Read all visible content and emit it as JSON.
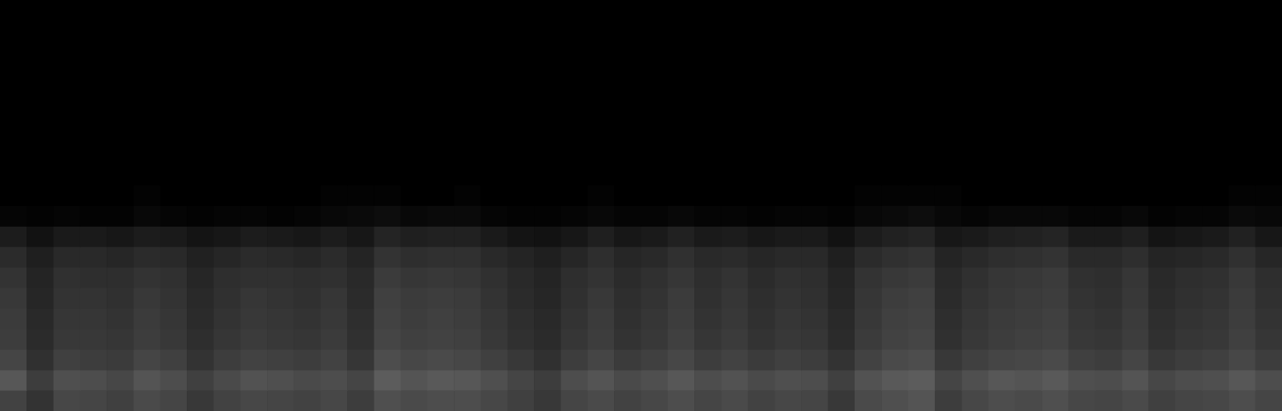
{
  "chart_data": {
    "type": "heatmap",
    "xlim": [
      0,
      48
    ],
    "ylim": [
      0,
      20
    ],
    "tick_labels": false,
    "grid": false,
    "color_range": [
      0,
      100
    ],
    "cells": [
      [
        26,
        20,
        28,
        27,
        25,
        29,
        27,
        22,
        26,
        28,
        27,
        26,
        28,
        24,
        31,
        29,
        30,
        30,
        28,
        25,
        22,
        27,
        29,
        26,
        28,
        30,
        27,
        29,
        26,
        28,
        27,
        22,
        29,
        31,
        33,
        24,
        28,
        30,
        29,
        31,
        28,
        27,
        29,
        25,
        27,
        28,
        30,
        27
      ],
      [
        34,
        24,
        31,
        30,
        28,
        33,
        30,
        25,
        29,
        32,
        31,
        29,
        30,
        27,
        36,
        33,
        35,
        34,
        31,
        27,
        24,
        30,
        33,
        29,
        31,
        34,
        30,
        32,
        29,
        31,
        30,
        25,
        32,
        35,
        36,
        27,
        31,
        34,
        33,
        35,
        31,
        30,
        33,
        28,
        30,
        31,
        34,
        30
      ],
      [
        27,
        19,
        25,
        24,
        23,
        27,
        25,
        20,
        24,
        26,
        25,
        24,
        26,
        21,
        30,
        28,
        29,
        28,
        25,
        22,
        19,
        24,
        27,
        23,
        25,
        28,
        24,
        26,
        23,
        25,
        24,
        20,
        26,
        29,
        30,
        22,
        25,
        27,
        28,
        29,
        25,
        24,
        27,
        22,
        24,
        25,
        28,
        24
      ],
      [
        24,
        17,
        22,
        22,
        21,
        24,
        22,
        18,
        21,
        23,
        22,
        21,
        23,
        19,
        27,
        25,
        26,
        25,
        22,
        19,
        17,
        21,
        24,
        20,
        22,
        25,
        21,
        23,
        20,
        22,
        21,
        17,
        23,
        26,
        27,
        19,
        22,
        24,
        25,
        26,
        22,
        21,
        24,
        19,
        21,
        22,
        25,
        21
      ],
      [
        23,
        16,
        21,
        21,
        20,
        23,
        21,
        17,
        20,
        22,
        21,
        20,
        22,
        18,
        26,
        24,
        25,
        24,
        21,
        18,
        16,
        20,
        23,
        19,
        21,
        24,
        20,
        22,
        19,
        21,
        20,
        16,
        22,
        25,
        26,
        18,
        21,
        23,
        24,
        25,
        21,
        20,
        23,
        18,
        20,
        21,
        24,
        20
      ],
      [
        22,
        15,
        20,
        20,
        19,
        22,
        20,
        16,
        19,
        21,
        20,
        19,
        21,
        17,
        25,
        23,
        24,
        23,
        20,
        17,
        15,
        19,
        22,
        18,
        20,
        23,
        19,
        21,
        18,
        20,
        19,
        15,
        21,
        24,
        25,
        17,
        20,
        22,
        23,
        24,
        20,
        19,
        22,
        17,
        19,
        20,
        23,
        19
      ],
      [
        20,
        14,
        19,
        18,
        18,
        20,
        19,
        15,
        18,
        19,
        19,
        18,
        19,
        16,
        23,
        21,
        22,
        21,
        19,
        16,
        14,
        18,
        20,
        17,
        19,
        21,
        18,
        20,
        17,
        19,
        18,
        14,
        20,
        22,
        23,
        16,
        19,
        21,
        22,
        23,
        19,
        18,
        21,
        16,
        18,
        19,
        22,
        18
      ],
      [
        17,
        12,
        16,
        16,
        15,
        17,
        16,
        13,
        15,
        17,
        16,
        15,
        17,
        14,
        20,
        18,
        19,
        19,
        16,
        14,
        12,
        15,
        18,
        15,
        16,
        19,
        16,
        17,
        15,
        16,
        16,
        12,
        17,
        19,
        20,
        14,
        16,
        18,
        19,
        20,
        16,
        16,
        18,
        14,
        15,
        16,
        19,
        15
      ],
      [
        11,
        7,
        10,
        10,
        9,
        11,
        10,
        8,
        9,
        11,
        10,
        9,
        11,
        9,
        14,
        12,
        13,
        13,
        10,
        8,
        7,
        9,
        12,
        9,
        10,
        13,
        10,
        11,
        9,
        10,
        10,
        7,
        11,
        13,
        14,
        9,
        10,
        12,
        13,
        14,
        10,
        10,
        12,
        8,
        9,
        10,
        13,
        9
      ],
      [
        2,
        1,
        2,
        1,
        1,
        3,
        2,
        1,
        2,
        2,
        1,
        2,
        3,
        4,
        5,
        3,
        4,
        4,
        2,
        1,
        1,
        2,
        3,
        2,
        2,
        3,
        2,
        2,
        1,
        2,
        2,
        1,
        3,
        4,
        5,
        3,
        2,
        3,
        3,
        3,
        2,
        2,
        3,
        1,
        2,
        2,
        4,
        3
      ],
      [
        0,
        0,
        0,
        0,
        0,
        1,
        0,
        0,
        0,
        0,
        0,
        0,
        1,
        1,
        1,
        0,
        0,
        1,
        0,
        0,
        0,
        0,
        1,
        0,
        0,
        0,
        0,
        0,
        0,
        0,
        0,
        0,
        1,
        1,
        1,
        1,
        0,
        0,
        0,
        0,
        0,
        0,
        0,
        0,
        0,
        0,
        1,
        1
      ],
      [
        0,
        0,
        0,
        0,
        0,
        0,
        0,
        0,
        0,
        0,
        0,
        0,
        0,
        0,
        0,
        0,
        0,
        0,
        0,
        0,
        0,
        0,
        0,
        0,
        0,
        0,
        0,
        0,
        0,
        0,
        0,
        0,
        0,
        0,
        0,
        0,
        0,
        0,
        0,
        0,
        0,
        0,
        0,
        0,
        0,
        0,
        0,
        0
      ],
      [
        0,
        0,
        0,
        0,
        0,
        0,
        0,
        0,
        0,
        0,
        0,
        0,
        0,
        0,
        0,
        0,
        0,
        0,
        0,
        0,
        0,
        0,
        0,
        0,
        0,
        0,
        0,
        0,
        0,
        0,
        0,
        0,
        0,
        0,
        0,
        0,
        0,
        0,
        0,
        0,
        0,
        0,
        0,
        0,
        0,
        0,
        0,
        0
      ],
      [
        0,
        0,
        0,
        0,
        0,
        0,
        0,
        0,
        0,
        0,
        0,
        0,
        0,
        0,
        0,
        0,
        0,
        0,
        0,
        0,
        0,
        0,
        0,
        0,
        0,
        0,
        0,
        0,
        0,
        0,
        0,
        0,
        0,
        0,
        0,
        0,
        0,
        0,
        0,
        0,
        0,
        0,
        0,
        0,
        0,
        0,
        0,
        0
      ],
      [
        0,
        0,
        0,
        0,
        0,
        0,
        0,
        0,
        0,
        0,
        0,
        0,
        0,
        0,
        0,
        0,
        0,
        0,
        0,
        0,
        0,
        0,
        0,
        0,
        0,
        0,
        0,
        0,
        0,
        0,
        0,
        0,
        0,
        0,
        0,
        0,
        0,
        0,
        0,
        0,
        0,
        0,
        0,
        0,
        0,
        0,
        0,
        0
      ],
      [
        0,
        0,
        0,
        0,
        0,
        0,
        0,
        0,
        0,
        0,
        0,
        0,
        0,
        0,
        0,
        0,
        0,
        0,
        0,
        0,
        0,
        0,
        0,
        0,
        0,
        0,
        0,
        0,
        0,
        0,
        0,
        0,
        0,
        0,
        0,
        0,
        0,
        0,
        0,
        0,
        0,
        0,
        0,
        0,
        0,
        0,
        0,
        0
      ],
      [
        0,
        0,
        0,
        0,
        0,
        0,
        0,
        0,
        0,
        0,
        0,
        0,
        0,
        0,
        0,
        0,
        0,
        0,
        0,
        0,
        0,
        0,
        0,
        0,
        0,
        0,
        0,
        0,
        0,
        0,
        0,
        0,
        0,
        0,
        0,
        0,
        0,
        0,
        0,
        0,
        0,
        0,
        0,
        0,
        0,
        0,
        0,
        0
      ],
      [
        0,
        0,
        0,
        0,
        0,
        0,
        0,
        0,
        0,
        0,
        0,
        0,
        0,
        0,
        0,
        0,
        0,
        0,
        0,
        0,
        0,
        0,
        0,
        0,
        0,
        0,
        0,
        0,
        0,
        0,
        0,
        0,
        0,
        0,
        0,
        0,
        0,
        0,
        0,
        0,
        0,
        0,
        0,
        0,
        0,
        0,
        0,
        0
      ],
      [
        0,
        0,
        0,
        0,
        0,
        0,
        0,
        0,
        0,
        0,
        0,
        0,
        0,
        0,
        0,
        0,
        0,
        0,
        0,
        0,
        0,
        0,
        0,
        0,
        0,
        0,
        0,
        0,
        0,
        0,
        0,
        0,
        0,
        0,
        0,
        0,
        0,
        0,
        0,
        0,
        0,
        0,
        0,
        0,
        0,
        0,
        0,
        0
      ],
      [
        0,
        0,
        0,
        0,
        0,
        0,
        0,
        0,
        0,
        0,
        0,
        0,
        0,
        0,
        0,
        0,
        0,
        0,
        0,
        0,
        0,
        0,
        0,
        0,
        0,
        0,
        0,
        0,
        0,
        0,
        0,
        0,
        0,
        0,
        0,
        0,
        0,
        0,
        0,
        0,
        0,
        0,
        0,
        0,
        0,
        0,
        0,
        0
      ]
    ]
  }
}
